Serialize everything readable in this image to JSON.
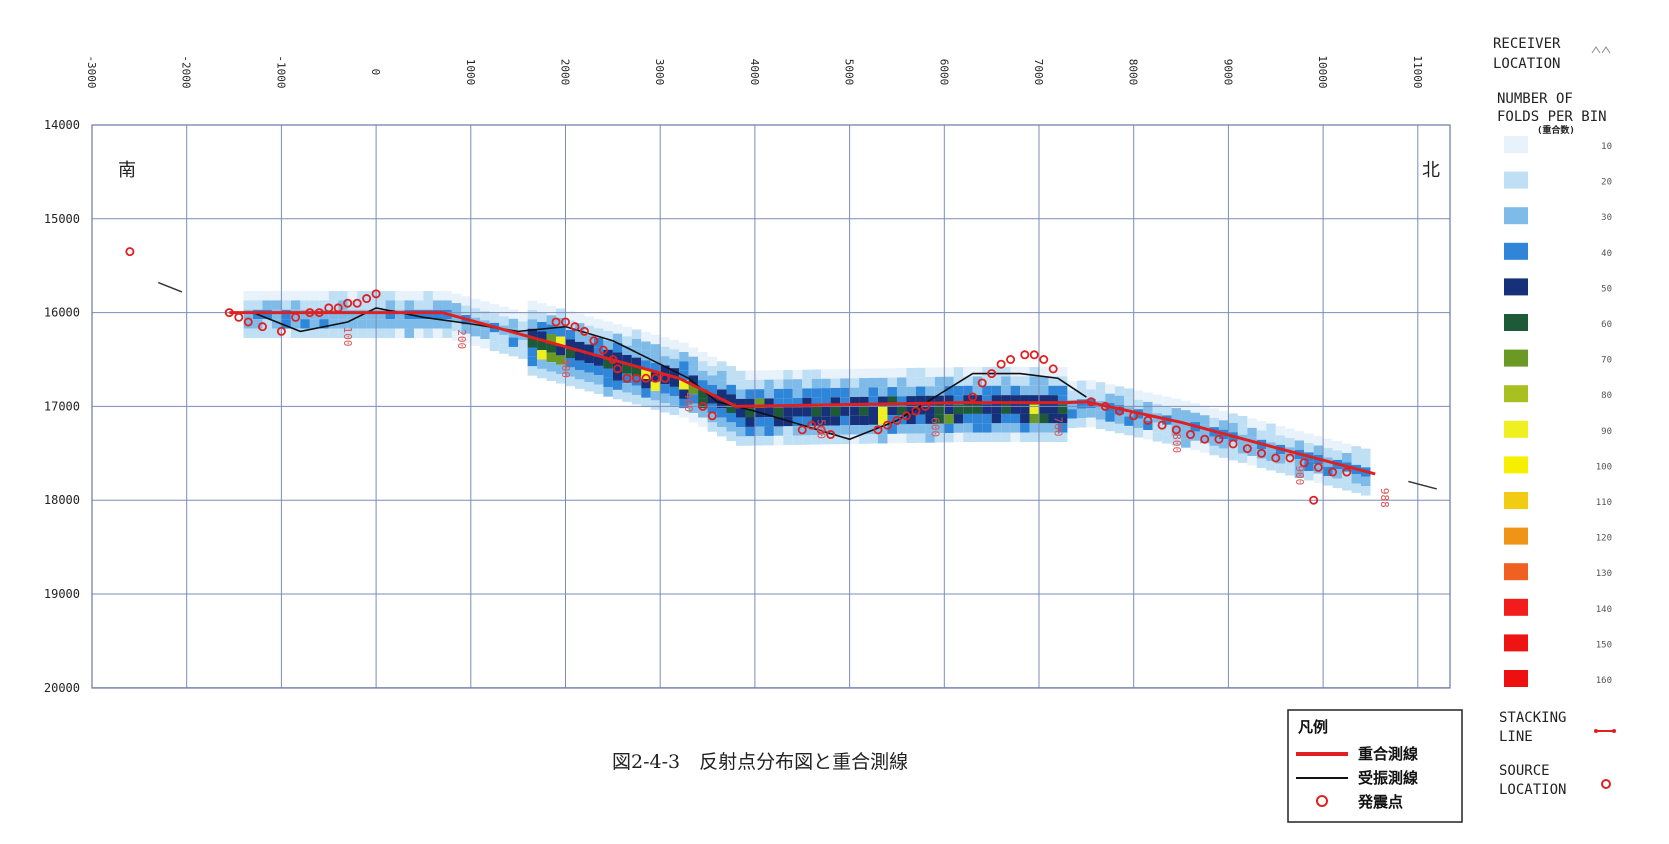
{
  "chart_data": {
    "type": "scatter",
    "caption": "図2-4-3　反射点分布図と重合測線",
    "x_ticks": [
      "-3000",
      "-2000",
      "-1000",
      "0",
      "1000",
      "2000",
      "3000",
      "4000",
      "5000",
      "6000",
      "7000",
      "8000",
      "9000",
      "10000",
      "11000"
    ],
    "y_ticks": [
      "14000",
      "15000",
      "16000",
      "17000",
      "18000",
      "19000",
      "20000"
    ],
    "xlim": [
      -3000,
      11400
    ],
    "ylim": [
      14000,
      20000
    ],
    "y_inverted": true,
    "grid": true,
    "direction_labels": {
      "south": "南",
      "north": "北"
    },
    "side_legend": {
      "receiver_location": [
        "RECEIVER",
        "LOCATION"
      ],
      "folds_title": [
        "NUMBER OF",
        "FOLDS PER BIN"
      ],
      "folds_title_jp": "(重合数)",
      "folds": [
        {
          "label": "10",
          "color": "#e8f2fa"
        },
        {
          "label": "20",
          "color": "#bfdff5"
        },
        {
          "label": "30",
          "color": "#7fbbe8"
        },
        {
          "label": "40",
          "color": "#2f86d8"
        },
        {
          "label": "50",
          "color": "#17307a"
        },
        {
          "label": "60",
          "color": "#1d5a38"
        },
        {
          "label": "70",
          "color": "#6a9a24"
        },
        {
          "label": "80",
          "color": "#a8c020"
        },
        {
          "label": "90",
          "color": "#f0f020"
        },
        {
          "label": "100",
          "color": "#f6f000"
        },
        {
          "label": "110",
          "color": "#f2cc10"
        },
        {
          "label": "120",
          "color": "#f09418"
        },
        {
          "label": "130",
          "color": "#f06020"
        },
        {
          "label": "140",
          "color": "#f21c1c"
        },
        {
          "label": "150",
          "color": "#ee1414"
        },
        {
          "label": "160",
          "color": "#ee1010"
        }
      ],
      "stacking_line": [
        "STACKING",
        "LINE"
      ],
      "source_location": [
        "SOURCE",
        "LOCATION"
      ]
    },
    "legend": {
      "title": "凡例",
      "items": [
        {
          "label": "重合測線",
          "color": "#e02020"
        },
        {
          "label": "受振測線",
          "color": "#111111"
        },
        {
          "label": "発震点",
          "color": "#e02020"
        }
      ]
    },
    "station_labels": [
      "100",
      "200",
      "300",
      "400",
      "500",
      "600",
      "700",
      "800",
      "900",
      "988"
    ],
    "series": [
      {
        "name": "重合測線",
        "x": [
          -1550,
          700,
          3200,
          3800,
          5000,
          6200,
          7300,
          7500,
          8500,
          9500,
          10550
        ],
        "y": [
          16000,
          16000,
          16700,
          17000,
          16980,
          16960,
          16960,
          16950,
          17170,
          17440,
          17720
        ]
      },
      {
        "name": "受振測線",
        "x": [
          -1300,
          -800,
          -300,
          0,
          500,
          1000,
          1500,
          2000,
          2500,
          3000,
          3300,
          3600,
          4000,
          4500,
          5000,
          5500,
          5900,
          6300,
          6800,
          7200,
          7500
        ],
        "y": [
          16000,
          16200,
          16100,
          15950,
          16050,
          16120,
          16200,
          16150,
          16300,
          16550,
          16700,
          16950,
          17050,
          17200,
          17350,
          17150,
          16900,
          16650,
          16650,
          16700,
          16900
        ]
      },
      {
        "name": "発震点",
        "x": [
          -2600,
          -1550,
          -1450,
          -1350,
          -1200,
          -1000,
          -850,
          -700,
          -600,
          -500,
          -400,
          -300,
          -200,
          -100,
          0,
          1900,
          2000,
          2100,
          2200,
          2300,
          2400,
          2500,
          2550,
          2650,
          2750,
          2850,
          2950,
          3050,
          3450,
          3550,
          4500,
          4600,
          4700,
          4800,
          5300,
          5400,
          5500,
          5600,
          5700,
          5800,
          6300,
          6400,
          6500,
          6600,
          6700,
          6850,
          6950,
          7050,
          7150,
          7550,
          7700,
          7850,
          8000,
          8150,
          8300,
          8450,
          8600,
          8750,
          8900,
          9050,
          9200,
          9350,
          9500,
          9650,
          9800,
          9950,
          10100,
          10250,
          9900
        ],
        "y": [
          15350,
          16000,
          16050,
          16100,
          16150,
          16200,
          16050,
          16000,
          16000,
          15950,
          15950,
          15900,
          15900,
          15850,
          15800,
          16100,
          16100,
          16150,
          16200,
          16300,
          16400,
          16500,
          16600,
          16700,
          16700,
          16700,
          16700,
          16700,
          17000,
          17100,
          17250,
          17200,
          17250,
          17300,
          17250,
          17200,
          17150,
          17100,
          17050,
          17000,
          16900,
          16750,
          16650,
          16550,
          16500,
          16450,
          16450,
          16500,
          16600,
          16950,
          17000,
          17050,
          17100,
          17150,
          17200,
          17250,
          17300,
          17350,
          17350,
          17400,
          17450,
          17500,
          17550,
          17550,
          17600,
          17650,
          17700,
          17700,
          18000
        ]
      }
    ]
  }
}
